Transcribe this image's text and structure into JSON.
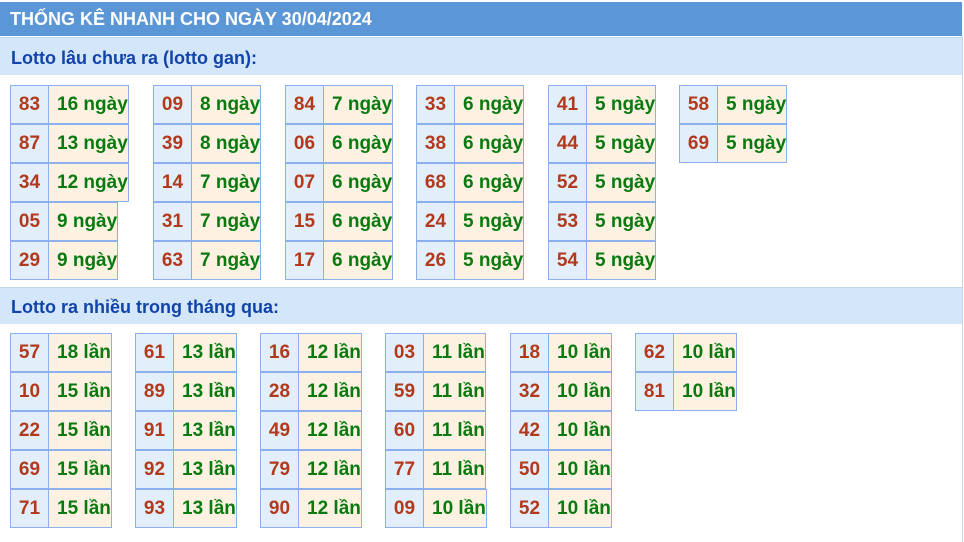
{
  "title": "THỐNG KÊ NHANH CHO NGÀY 30/04/2024",
  "colors": {
    "header": "#5b96d6",
    "section": "#d4e7fa",
    "number": "#b23a1c",
    "value": "#0a7a10"
  },
  "gan": {
    "heading": "Lotto lâu chưa ra (lotto gan):",
    "groups": [
      [
        [
          "83",
          "16 ngày"
        ],
        [
          "87",
          "13 ngày"
        ],
        [
          "34",
          "12 ngày"
        ],
        [
          "05",
          "9 ngày"
        ],
        [
          "29",
          "9 ngày"
        ]
      ],
      [
        [
          "09",
          "8 ngày"
        ],
        [
          "39",
          "8 ngày"
        ],
        [
          "14",
          "7 ngày"
        ],
        [
          "31",
          "7 ngày"
        ],
        [
          "63",
          "7 ngày"
        ]
      ],
      [
        [
          "84",
          "7 ngày"
        ],
        [
          "06",
          "6 ngày"
        ],
        [
          "07",
          "6 ngày"
        ],
        [
          "15",
          "6 ngày"
        ],
        [
          "17",
          "6 ngày"
        ]
      ],
      [
        [
          "33",
          "6 ngày"
        ],
        [
          "38",
          "6 ngày"
        ],
        [
          "68",
          "6 ngày"
        ],
        [
          "24",
          "5 ngày"
        ],
        [
          "26",
          "5 ngày"
        ]
      ],
      [
        [
          "41",
          "5 ngày"
        ],
        [
          "44",
          "5 ngày"
        ],
        [
          "52",
          "5 ngày"
        ],
        [
          "53",
          "5 ngày"
        ],
        [
          "54",
          "5 ngày"
        ]
      ],
      [
        [
          "58",
          "5 ngày"
        ],
        [
          "69",
          "5 ngày"
        ]
      ]
    ]
  },
  "frequent": {
    "heading": "Lotto ra nhiều trong tháng qua:",
    "groups": [
      [
        [
          "57",
          "18 lần"
        ],
        [
          "10",
          "15 lần"
        ],
        [
          "22",
          "15 lần"
        ],
        [
          "69",
          "15 lần"
        ],
        [
          "71",
          "15 lần"
        ]
      ],
      [
        [
          "61",
          "13 lần"
        ],
        [
          "89",
          "13 lần"
        ],
        [
          "91",
          "13 lần"
        ],
        [
          "92",
          "13 lần"
        ],
        [
          "93",
          "13 lần"
        ]
      ],
      [
        [
          "16",
          "12 lần"
        ],
        [
          "28",
          "12 lần"
        ],
        [
          "49",
          "12 lần"
        ],
        [
          "79",
          "12 lần"
        ],
        [
          "90",
          "12 lần"
        ]
      ],
      [
        [
          "03",
          "11 lần"
        ],
        [
          "59",
          "11 lần"
        ],
        [
          "60",
          "11 lần"
        ],
        [
          "77",
          "11 lần"
        ],
        [
          "09",
          "10 lần"
        ]
      ],
      [
        [
          "18",
          "10 lần"
        ],
        [
          "32",
          "10 lần"
        ],
        [
          "42",
          "10 lần"
        ],
        [
          "50",
          "10 lần"
        ],
        [
          "52",
          "10 lần"
        ]
      ],
      [
        [
          "62",
          "10 lần"
        ],
        [
          "81",
          "10 lần"
        ]
      ]
    ]
  }
}
